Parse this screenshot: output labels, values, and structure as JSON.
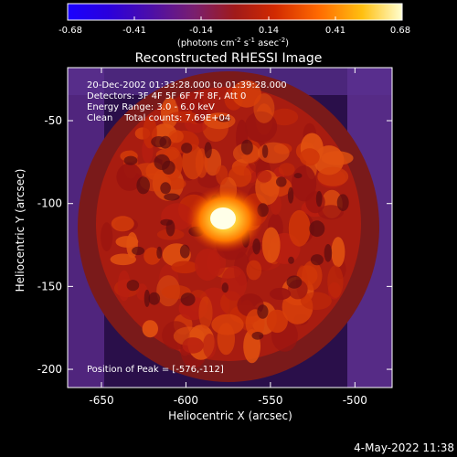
{
  "colorbar": {
    "ticks": [
      "-0.68",
      "-0.41",
      "-0.14",
      "0.14",
      "0.41",
      "0.68"
    ],
    "unit_prefix": "(photons cm",
    "unit_exp1": "-2",
    "unit_mid1": " s",
    "unit_exp2": "-1",
    "unit_mid2": " asec",
    "unit_exp3": "-2",
    "unit_suffix": ")",
    "range": [
      -0.68,
      0.68
    ]
  },
  "annotations": {
    "time": "20-Dec-2002 01:33:28.000 to 01:39:28.000",
    "detectors": "Detectors: 3F 4F 5F 6F 7F 8F, Att 0",
    "energy": "Energy Range: 3.0 - 6.0 keV",
    "clean": "Clean    Total counts: 7.69E+04",
    "peak": "Position of Peak = [-576,-112]"
  },
  "footer_timestamp": "4-May-2022 11:38",
  "chart_data": {
    "type": "heatmap",
    "title": "Reconstructed RHESSI Image",
    "xlabel": "Heliocentric X (arcsec)",
    "ylabel": "Heliocentric Y (arcsec)",
    "xlim": [
      -670,
      -478
    ],
    "ylim": [
      -211,
      -18
    ],
    "xticks": [
      -650,
      -600,
      -550,
      -500
    ],
    "yticks": [
      -50,
      -100,
      -150,
      -200
    ],
    "xtick_labels": [
      "-650",
      "-600",
      "-550",
      "-500"
    ],
    "ytick_labels": [
      "-50",
      "-100",
      "-150",
      "-200"
    ],
    "peak": {
      "x": -576,
      "y": -112
    },
    "colormap": [
      "#1a00ff",
      "#3300cc",
      "#6a2f93",
      "#9a1414",
      "#cc1a00",
      "#ff5500",
      "#ffbb00",
      "#ffffaa"
    ]
  }
}
